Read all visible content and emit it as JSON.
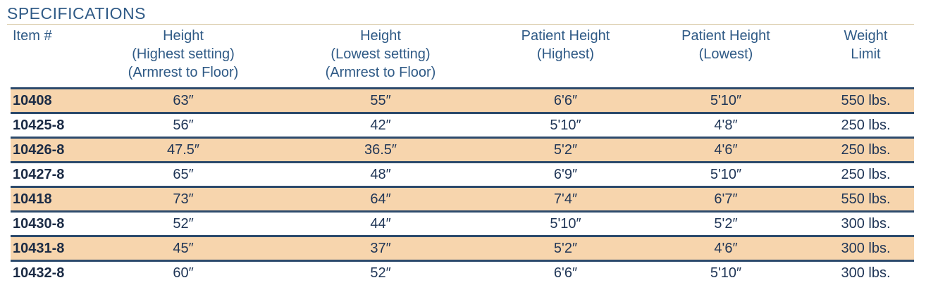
{
  "title": "SPECIFICATIONS",
  "columns": [
    {
      "lines": [
        "Item #"
      ]
    },
    {
      "lines": [
        "Height",
        "(Highest setting)",
        "(Armrest to Floor)"
      ]
    },
    {
      "lines": [
        "Height",
        "(Lowest setting)",
        "(Armrest to Floor)"
      ]
    },
    {
      "lines": [
        "Patient Height",
        "(Highest)"
      ]
    },
    {
      "lines": [
        "Patient Height",
        "(Lowest)"
      ]
    },
    {
      "lines": [
        "Weight",
        "Limit"
      ]
    }
  ],
  "rows": [
    {
      "item": "10408",
      "height_high": "63″",
      "height_low": "55″",
      "patient_high": "6'6″",
      "patient_low": "5'10″",
      "weight": "550 lbs."
    },
    {
      "item": "10425-8",
      "height_high": "56″",
      "height_low": "42″",
      "patient_high": "5'10″",
      "patient_low": "4'8″",
      "weight": "250 lbs."
    },
    {
      "item": "10426-8",
      "height_high": "47.5″",
      "height_low": "36.5″",
      "patient_high": "5'2″",
      "patient_low": "4'6″",
      "weight": "250 lbs."
    },
    {
      "item": "10427-8",
      "height_high": "65″",
      "height_low": "48″",
      "patient_high": "6'9″",
      "patient_low": "5'10″",
      "weight": "250 lbs."
    },
    {
      "item": "10418",
      "height_high": "73″",
      "height_low": "64″",
      "patient_high": "7'4″",
      "patient_low": "6'7″",
      "weight": "550 lbs."
    },
    {
      "item": "10430-8",
      "height_high": "52″",
      "height_low": "44″",
      "patient_high": "5'10″",
      "patient_low": "5'2″",
      "weight": "300 lbs."
    },
    {
      "item": "10431-8",
      "height_high": "45″",
      "height_low": "37″",
      "patient_high": "5'2″",
      "patient_low": "4'6″",
      "weight": "300 lbs."
    },
    {
      "item": "10432-8",
      "height_high": "60″",
      "height_low": "52″",
      "patient_high": "6'6″",
      "patient_low": "5'10″",
      "weight": "300 lbs."
    }
  ],
  "colors": {
    "header_text": "#2f5a86",
    "shaded_row": "#f7d5ad",
    "row_rule": "#2c4a6c"
  }
}
